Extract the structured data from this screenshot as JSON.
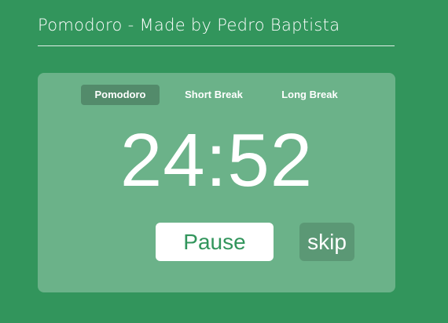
{
  "header": {
    "title": "Pomodoro - Made by Pedro Baptista"
  },
  "tabs": [
    {
      "label": "Pomodoro",
      "active": true
    },
    {
      "label": "Short Break",
      "active": false
    },
    {
      "label": "Long Break",
      "active": false
    }
  ],
  "timer": {
    "display": "24:52"
  },
  "controls": {
    "pause_label": "Pause",
    "skip_label": "skip"
  },
  "colors": {
    "background": "#32955c",
    "accent_text": "#32955c",
    "card": "rgba(255,255,255,0.28)"
  }
}
